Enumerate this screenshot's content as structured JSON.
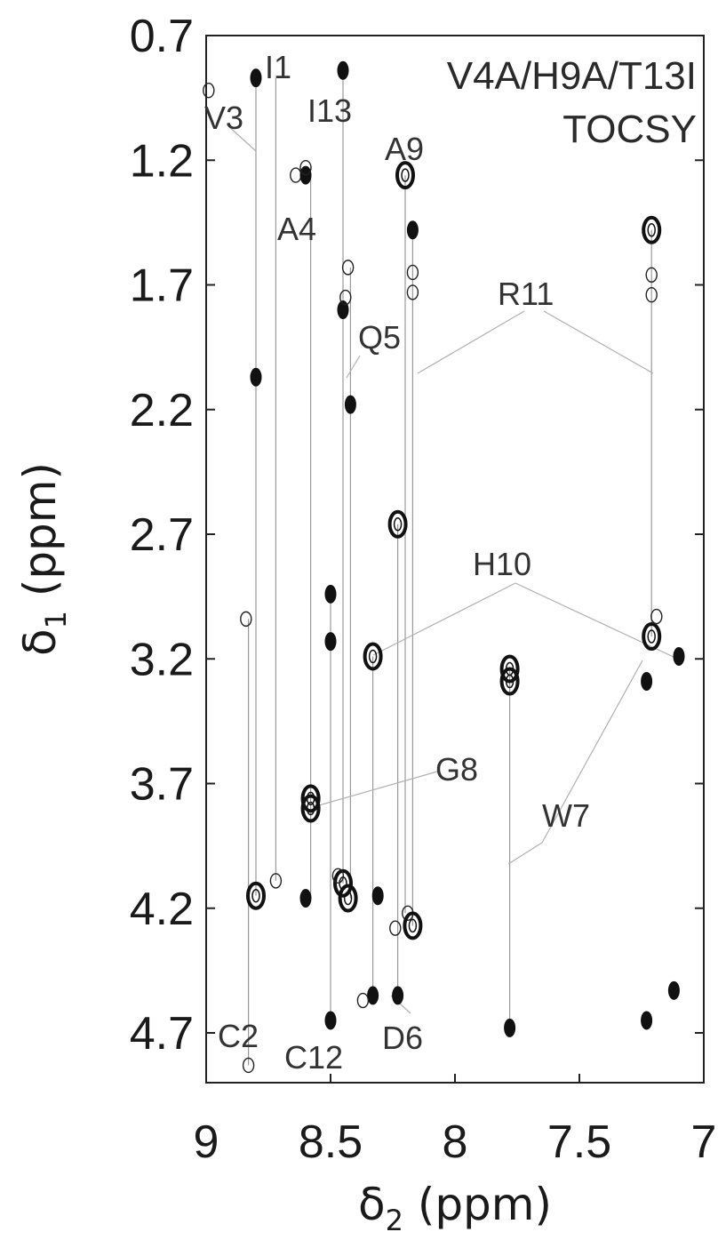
{
  "chart_data": {
    "type": "scatter",
    "title": "V4A/H9A/T13I",
    "subtitle": "TOCSY",
    "xlabel": "δ2 (ppm)",
    "ylabel": "δ1 (ppm)",
    "xlim": [
      9,
      7
    ],
    "ylim": [
      0.7,
      4.9
    ],
    "x_reversed": true,
    "y_reversed": true,
    "grid": false,
    "x_ticks": [
      "9",
      "8.5",
      "8",
      "7.5",
      "7"
    ],
    "y_ticks": [
      "0.7",
      "1.2",
      "1.7",
      "2.2",
      "2.7",
      "3.2",
      "3.7",
      "4.2",
      "4.7"
    ],
    "residue_labels": [
      "V3",
      "I1",
      "I13",
      "A9",
      "A4",
      "R11",
      "Q5",
      "H10",
      "G8",
      "W7",
      "C2",
      "C12",
      "D6"
    ],
    "peaks": [
      {
        "x": 8.8,
        "y": 0.87,
        "style": "filled"
      },
      {
        "x": 8.8,
        "y": 2.07,
        "style": "filled"
      },
      {
        "x": 8.8,
        "y": 4.15,
        "style": "ring"
      },
      {
        "x": 8.84,
        "y": 3.04,
        "style": "open"
      },
      {
        "x": 8.83,
        "y": 4.83,
        "style": "open"
      },
      {
        "x": 8.72,
        "y": 4.09,
        "style": "open"
      },
      {
        "x": 8.99,
        "y": 0.92,
        "style": "open"
      },
      {
        "x": 8.64,
        "y": 1.26,
        "style": "open"
      },
      {
        "x": 8.6,
        "y": 1.26,
        "style": "filled"
      },
      {
        "x": 8.6,
        "y": 1.23,
        "style": "open"
      },
      {
        "x": 8.6,
        "y": 4.16,
        "style": "filled"
      },
      {
        "x": 8.58,
        "y": 3.8,
        "style": "ring"
      },
      {
        "x": 8.58,
        "y": 3.76,
        "style": "ring"
      },
      {
        "x": 8.5,
        "y": 2.94,
        "style": "filled"
      },
      {
        "x": 8.5,
        "y": 3.13,
        "style": "filled"
      },
      {
        "x": 8.5,
        "y": 4.65,
        "style": "filled"
      },
      {
        "x": 8.45,
        "y": 0.84,
        "style": "filled"
      },
      {
        "x": 8.45,
        "y": 1.8,
        "style": "filled"
      },
      {
        "x": 8.44,
        "y": 1.75,
        "style": "open"
      },
      {
        "x": 8.43,
        "y": 1.63,
        "style": "open"
      },
      {
        "x": 8.42,
        "y": 2.18,
        "style": "filled"
      },
      {
        "x": 8.45,
        "y": 4.1,
        "style": "ring"
      },
      {
        "x": 8.43,
        "y": 4.16,
        "style": "ring"
      },
      {
        "x": 8.47,
        "y": 4.07,
        "style": "open"
      },
      {
        "x": 8.33,
        "y": 3.19,
        "style": "ring"
      },
      {
        "x": 8.33,
        "y": 4.55,
        "style": "filled"
      },
      {
        "x": 8.37,
        "y": 4.57,
        "style": "open"
      },
      {
        "x": 8.31,
        "y": 4.15,
        "style": "filled"
      },
      {
        "x": 8.23,
        "y": 2.66,
        "style": "ring"
      },
      {
        "x": 8.23,
        "y": 4.55,
        "style": "filled"
      },
      {
        "x": 8.24,
        "y": 4.28,
        "style": "open"
      },
      {
        "x": 8.2,
        "y": 1.26,
        "style": "ring"
      },
      {
        "x": 8.19,
        "y": 4.22,
        "style": "open"
      },
      {
        "x": 8.17,
        "y": 4.27,
        "style": "ring"
      },
      {
        "x": 8.17,
        "y": 1.48,
        "style": "filled"
      },
      {
        "x": 8.17,
        "y": 1.65,
        "style": "open"
      },
      {
        "x": 8.17,
        "y": 1.73,
        "style": "open"
      },
      {
        "x": 7.78,
        "y": 3.29,
        "style": "ring"
      },
      {
        "x": 7.78,
        "y": 3.24,
        "style": "ring"
      },
      {
        "x": 7.78,
        "y": 4.68,
        "style": "filled"
      },
      {
        "x": 7.21,
        "y": 1.48,
        "style": "ring"
      },
      {
        "x": 7.21,
        "y": 1.66,
        "style": "open"
      },
      {
        "x": 7.21,
        "y": 1.74,
        "style": "open"
      },
      {
        "x": 7.21,
        "y": 3.11,
        "style": "ring"
      },
      {
        "x": 7.19,
        "y": 3.03,
        "style": "open"
      },
      {
        "x": 7.23,
        "y": 3.29,
        "style": "filled"
      },
      {
        "x": 7.1,
        "y": 3.19,
        "style": "filled"
      },
      {
        "x": 7.12,
        "y": 4.53,
        "style": "filled"
      },
      {
        "x": 7.23,
        "y": 4.65,
        "style": "filled"
      }
    ]
  }
}
